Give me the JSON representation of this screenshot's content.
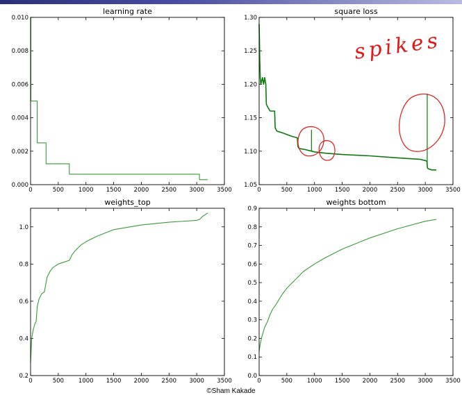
{
  "credit": "©Sham Kakade",
  "annotation_text": "spikes",
  "colors": {
    "line": "#3a9a3a",
    "dark_line": "#0a7a0a",
    "ink": "#e01818"
  },
  "chart_data": [
    {
      "type": "line",
      "title": "learning rate",
      "xlabel": "",
      "ylabel": "",
      "xlim": [
        0,
        3500
      ],
      "ylim": [
        0.0,
        0.01
      ],
      "xticks": [
        "0",
        "500",
        "1000",
        "1500",
        "2000",
        "2500",
        "3000",
        "3500"
      ],
      "yticks": [
        "0.000",
        "0.002",
        "0.004",
        "0.006",
        "0.008",
        "0.010"
      ],
      "series": [
        {
          "x": [
            0,
            5,
            5,
            120,
            120,
            280,
            280,
            700,
            700,
            3050,
            3050,
            3200
          ],
          "y": [
            0.01,
            0.01,
            0.005,
            0.005,
            0.0025,
            0.0025,
            0.00125,
            0.00125,
            0.000625,
            0.000625,
            0.0003,
            0.0003
          ]
        }
      ]
    },
    {
      "type": "line",
      "title": "square loss",
      "xlabel": "",
      "ylabel": "",
      "xlim": [
        0,
        3500
      ],
      "ylim": [
        1.05,
        1.3
      ],
      "xticks": [
        "0",
        "500",
        "1000",
        "1500",
        "2000",
        "2500",
        "3000",
        "3500"
      ],
      "yticks": [
        "1.05",
        "1.10",
        "1.15",
        "1.20",
        "1.25",
        "1.30"
      ],
      "series": [
        {
          "x": [
            0,
            5,
            10,
            20,
            30,
            60,
            80,
            100,
            120,
            130,
            160,
            200,
            250,
            280,
            290,
            320,
            400,
            500,
            600,
            690,
            700,
            720,
            800,
            950,
            1000,
            1200,
            1500,
            2000,
            2500,
            2900,
            3000,
            3030,
            3040,
            3050,
            3080,
            3120,
            3200
          ],
          "y": [
            1.29,
            1.27,
            1.24,
            1.21,
            1.2,
            1.21,
            1.2,
            1.21,
            1.2,
            1.17,
            1.165,
            1.16,
            1.16,
            1.16,
            1.135,
            1.13,
            1.128,
            1.125,
            1.122,
            1.12,
            1.107,
            1.104,
            1.103,
            1.1,
            1.099,
            1.097,
            1.095,
            1.093,
            1.09,
            1.088,
            1.086,
            1.085,
            1.075,
            1.074,
            1.073,
            1.072,
            1.072
          ]
        }
      ],
      "spikes": [
        {
          "x": 945,
          "y": 1.132
        },
        {
          "x": 3035,
          "y": 1.186
        }
      ]
    },
    {
      "type": "line",
      "title": "weights_top",
      "xlabel": "",
      "ylabel": "",
      "xlim": [
        0,
        3500
      ],
      "ylim": [
        0.2,
        1.1
      ],
      "xticks": [
        "0",
        "500",
        "1000",
        "1500",
        "2000",
        "2500",
        "3000",
        "3500"
      ],
      "yticks": [
        "0.2",
        "0.4",
        "0.6",
        "0.8",
        "1.0"
      ],
      "series": [
        {
          "x": [
            0,
            20,
            50,
            80,
            100,
            120,
            150,
            200,
            250,
            280,
            300,
            350,
            400,
            500,
            600,
            700,
            750,
            800,
            900,
            1000,
            1200,
            1500,
            2000,
            2500,
            3000,
            3050,
            3100,
            3150,
            3200
          ],
          "y": [
            0.27,
            0.4,
            0.45,
            0.48,
            0.49,
            0.57,
            0.61,
            0.64,
            0.65,
            0.7,
            0.73,
            0.76,
            0.78,
            0.8,
            0.81,
            0.82,
            0.85,
            0.87,
            0.9,
            0.92,
            0.95,
            0.985,
            1.01,
            1.025,
            1.035,
            1.04,
            1.055,
            1.065,
            1.075
          ]
        }
      ]
    },
    {
      "type": "line",
      "title": "weights bottom",
      "xlabel": "",
      "ylabel": "",
      "xlim": [
        0,
        3500
      ],
      "ylim": [
        0.0,
        0.9
      ],
      "xticks": [
        "0",
        "500",
        "1000",
        "1500",
        "2000",
        "2500",
        "3000",
        "3500"
      ],
      "yticks": [
        "0.0",
        "0.1",
        "0.2",
        "0.3",
        "0.4",
        "0.5",
        "0.6",
        "0.7",
        "0.8",
        "0.9"
      ],
      "series": [
        {
          "x": [
            0,
            20,
            50,
            100,
            150,
            200,
            250,
            300,
            400,
            500,
            600,
            700,
            800,
            1000,
            1200,
            1500,
            2000,
            2500,
            3000,
            3200
          ],
          "y": [
            0.13,
            0.17,
            0.21,
            0.26,
            0.29,
            0.33,
            0.36,
            0.38,
            0.43,
            0.47,
            0.5,
            0.53,
            0.56,
            0.6,
            0.635,
            0.68,
            0.74,
            0.79,
            0.83,
            0.84
          ]
        }
      ]
    }
  ]
}
